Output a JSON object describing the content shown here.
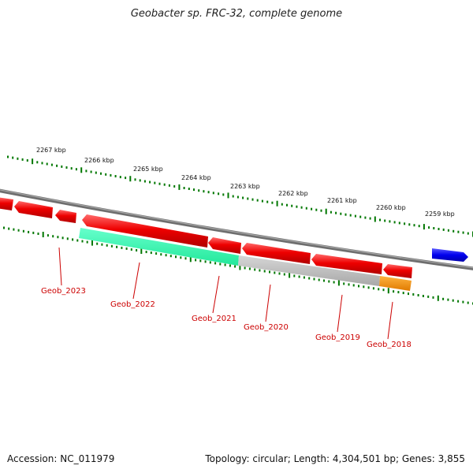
{
  "map": {
    "title": "Geobacter sp. FRC-32, complete genome",
    "accession": "Accession: NC_011979",
    "summary": "Topology: circular; Length: 4,304,501 bp; Genes: 3,855"
  },
  "scale_labels": [
    "2267 kbp",
    "2266 kbp",
    "2265 kbp",
    "2264 kbp",
    "2263 kbp",
    "2262 kbp",
    "2261 kbp",
    "2260 kbp",
    "2259 kbp"
  ],
  "gene_labels": [
    "Geob_2023",
    "Geob_2022",
    "Geob_2021",
    "Geob_2020",
    "Geob_2019",
    "Geob_2018"
  ],
  "colors": {
    "backbone": "#808080",
    "ticks": "#007700",
    "gene_forward": "#0000ee",
    "gene_reverse": "#ee0000",
    "feature_green": "#33ffb0",
    "feature_gray": "#bbbbbb",
    "feature_orange": "#ff9900",
    "label": "#cc0000"
  }
}
